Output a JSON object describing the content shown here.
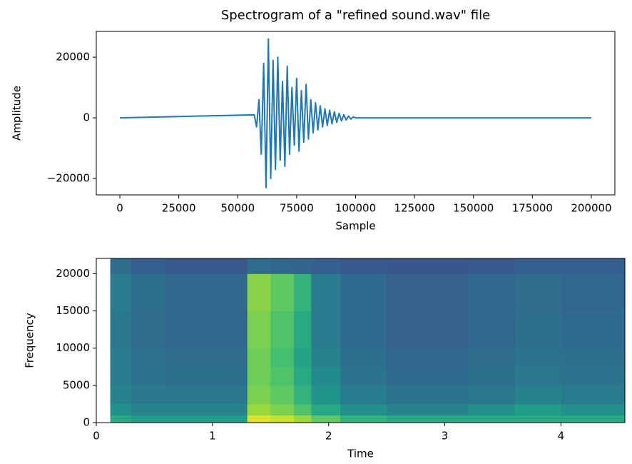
{
  "chart_data": [
    {
      "type": "line",
      "title": "Spectrogram of a \"refined sound.wav\" file",
      "xlabel": "Sample",
      "ylabel": "Amplitude",
      "x": [
        0,
        57000,
        58000,
        59000,
        60000,
        61000,
        62000,
        63000,
        64000,
        65000,
        66000,
        67000,
        68000,
        69000,
        70000,
        71000,
        72000,
        73000,
        74000,
        75000,
        76000,
        77000,
        78000,
        79000,
        80000,
        81000,
        82000,
        83000,
        84000,
        85000,
        86000,
        87000,
        88000,
        89000,
        90000,
        91000,
        92000,
        93000,
        94000,
        95000,
        96000,
        97000,
        98000,
        99000,
        100000,
        200000
      ],
      "values": [
        0,
        1000,
        -3000,
        6000,
        -12000,
        18000,
        -23000,
        26000,
        -20000,
        19000,
        -17000,
        20000,
        -14000,
        12000,
        -16000,
        17000,
        -12000,
        10000,
        -9000,
        13000,
        -11000,
        9000,
        -8000,
        11000,
        -7000,
        6000,
        -5000,
        5000,
        -4000,
        4000,
        -3000,
        3000,
        -2500,
        2500,
        -2000,
        2000,
        -1500,
        1500,
        -1000,
        1000,
        -700,
        600,
        -400,
        300,
        0,
        0
      ],
      "color": "#1f77b4",
      "xlim": [
        -10000,
        210000
      ],
      "xticks": [
        0,
        25000,
        50000,
        75000,
        100000,
        125000,
        150000,
        175000,
        200000
      ],
      "ylim": [
        -25400,
        28500
      ],
      "yticks": [
        {
          "value": -20000,
          "label": "−20000"
        },
        0,
        20000
      ]
    },
    {
      "type": "heatmap",
      "xlabel": "Time",
      "ylabel": "Frequency",
      "colormap": "viridis",
      "x_edges": [
        0.12,
        0.3,
        0.6,
        0.9,
        1.2,
        1.3,
        1.5,
        1.7,
        1.85,
        2.1,
        2.5,
        3.0,
        3.2,
        3.6,
        4.0,
        4.55
      ],
      "y_edges": [
        0,
        1000,
        2500,
        5000,
        7500,
        10000,
        15000,
        20000,
        22050
      ],
      "z": [
        [
          0.6,
          0.55,
          0.55,
          0.55,
          0.55,
          0.95,
          0.92,
          0.85,
          0.75,
          0.65,
          0.6,
          0.6,
          0.6,
          0.6,
          0.6
        ],
        [
          0.5,
          0.45,
          0.45,
          0.45,
          0.45,
          0.85,
          0.8,
          0.72,
          0.6,
          0.5,
          0.45,
          0.45,
          0.5,
          0.55,
          0.5
        ],
        [
          0.45,
          0.4,
          0.4,
          0.4,
          0.4,
          0.8,
          0.75,
          0.65,
          0.52,
          0.42,
          0.38,
          0.38,
          0.4,
          0.45,
          0.42
        ],
        [
          0.42,
          0.38,
          0.36,
          0.36,
          0.36,
          0.78,
          0.72,
          0.6,
          0.48,
          0.38,
          0.34,
          0.34,
          0.36,
          0.4,
          0.38
        ],
        [
          0.42,
          0.37,
          0.35,
          0.35,
          0.35,
          0.78,
          0.7,
          0.58,
          0.45,
          0.36,
          0.33,
          0.33,
          0.35,
          0.38,
          0.36
        ],
        [
          0.4,
          0.35,
          0.33,
          0.33,
          0.33,
          0.8,
          0.72,
          0.6,
          0.42,
          0.34,
          0.31,
          0.31,
          0.33,
          0.36,
          0.34
        ],
        [
          0.42,
          0.36,
          0.33,
          0.33,
          0.33,
          0.82,
          0.75,
          0.65,
          0.42,
          0.34,
          0.31,
          0.31,
          0.33,
          0.35,
          0.33
        ],
        [
          0.35,
          0.3,
          0.28,
          0.28,
          0.28,
          0.35,
          0.33,
          0.32,
          0.3,
          0.28,
          0.27,
          0.27,
          0.28,
          0.3,
          0.3
        ]
      ],
      "xlim": [
        0,
        4.55
      ],
      "xticks": [
        0,
        1,
        2,
        3,
        4
      ],
      "ylim": [
        0,
        22050
      ],
      "yticks": [
        0,
        5000,
        10000,
        15000,
        20000
      ]
    }
  ]
}
